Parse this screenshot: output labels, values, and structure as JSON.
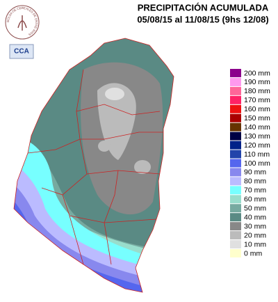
{
  "header": {
    "title": "PRECIPITACIÓN ACUMULADA",
    "subtitle": "05/08/15 al 11/08/15 (9hs 12/08)"
  },
  "logo": {
    "ring_text": "BOLSA DE CEREALES DE ENTRE RIOS",
    "badge": "CCA"
  },
  "legend": [
    {
      "label": "200 mm",
      "color": "#8b008b"
    },
    {
      "label": "190 mm",
      "color": "#ff99ee"
    },
    {
      "label": "180 mm",
      "color": "#ff6699"
    },
    {
      "label": "170 mm",
      "color": "#ff2266"
    },
    {
      "label": "160 mm",
      "color": "#ee1111"
    },
    {
      "label": "150 mm",
      "color": "#aa0000"
    },
    {
      "label": "140 mm",
      "color": "#663300"
    },
    {
      "label": "130 mm",
      "color": "#000044"
    },
    {
      "label": "120 mm",
      "color": "#002288"
    },
    {
      "label": "110 mm",
      "color": "#2244aa"
    },
    {
      "label": "100 mm",
      "color": "#5566ee"
    },
    {
      "label": "90 mm",
      "color": "#8888ee"
    },
    {
      "label": "80 mm",
      "color": "#bbbbff"
    },
    {
      "label": "70 mm",
      "color": "#77ffff"
    },
    {
      "label": "60 mm",
      "color": "#99ddcc"
    },
    {
      "label": "50 mm",
      "color": "#77aaa0"
    },
    {
      "label": "40 mm",
      "color": "#5a8a84"
    },
    {
      "label": "30 mm",
      "color": "#888888"
    },
    {
      "label": "20 mm",
      "color": "#bbbbbb"
    },
    {
      "label": "10 mm",
      "color": "#e0e0e0"
    },
    {
      "label": "0 mm",
      "color": "#ffffcc"
    }
  ]
}
